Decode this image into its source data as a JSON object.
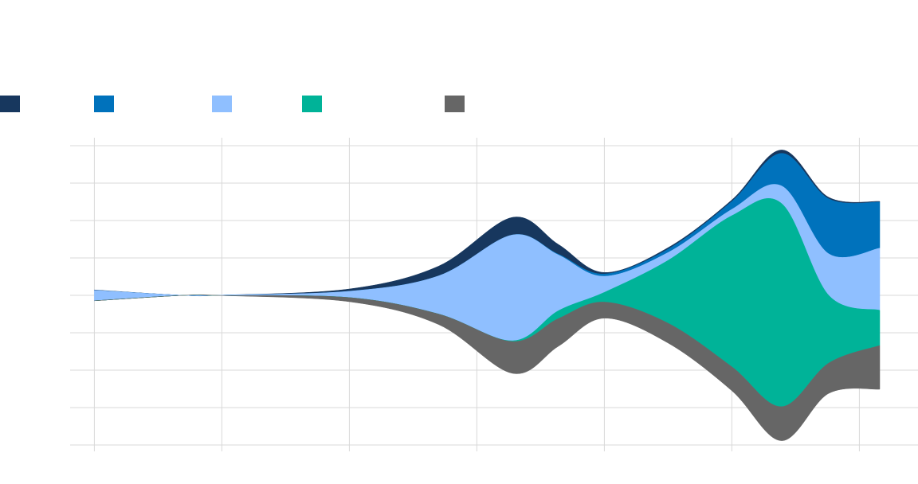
{
  "chart_data": {
    "type": "streamgraph",
    "offset": "silhouette",
    "grid": true,
    "x": [
      0,
      0.7,
      1,
      2,
      2.7,
      3.28,
      3.64,
      4,
      4.5,
      5,
      5.39,
      5.76,
      6.16
    ],
    "xlim": [
      -0.19,
      6.46
    ],
    "xticks": [
      0,
      1,
      2,
      3,
      4,
      5,
      6
    ],
    "ylim": [
      -40,
      40
    ],
    "yticks": [
      -40,
      -30,
      -20,
      -10,
      0,
      10,
      20,
      30,
      40
    ],
    "series": [
      {
        "color": "#17375e",
        "values": [
          0.1,
          0,
          0,
          0.6,
          2.6,
          4.7,
          2.6,
          0.4,
          0.4,
          0.4,
          0.9,
          0.4,
          0.2
        ]
      },
      {
        "color": "#0072bc",
        "values": [
          0,
          0,
          0,
          0,
          0,
          0,
          0.2,
          0.6,
          0.9,
          2.1,
          8.7,
          14.7,
          12.3
        ]
      },
      {
        "color": "#8fbfff",
        "values": [
          2.8,
          0,
          0.1,
          1.7,
          10.2,
          28.3,
          14.9,
          4.3,
          2.1,
          1.7,
          4.7,
          11.1,
          16.6
        ]
      },
      {
        "color": "#00b398",
        "values": [
          0,
          0,
          0,
          0,
          0,
          0.2,
          2.1,
          2.6,
          16.8,
          40.4,
          54.3,
          18.1,
          9.4
        ]
      },
      {
        "color": "#666666",
        "values": [
          0,
          0,
          0,
          1.1,
          2.8,
          8.5,
          7.4,
          4.3,
          5.3,
          6.4,
          9.1,
          8.1,
          11.7
        ]
      }
    ]
  }
}
